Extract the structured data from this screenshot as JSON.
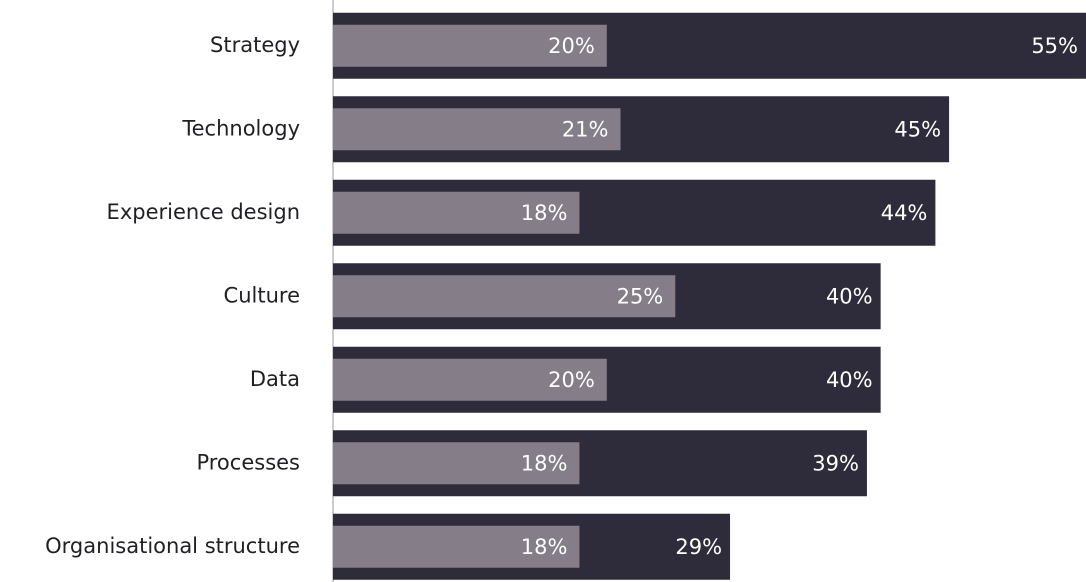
{
  "chart_data": {
    "type": "bar",
    "orientation": "horizontal",
    "overlap": true,
    "categories": [
      "Strategy",
      "Technology",
      "Experience design",
      "Culture",
      "Data",
      "Processes",
      "Organisational structure"
    ],
    "series": [
      {
        "color": "#2e2c3a",
        "values": [
          55,
          45,
          44,
          40,
          40,
          39,
          29
        ],
        "value_labels": [
          "55%",
          "45%",
          "44%",
          "40%",
          "40%",
          "39%",
          "29%"
        ]
      },
      {
        "color": "#857d88",
        "values": [
          20,
          21,
          18,
          25,
          20,
          18,
          18
        ],
        "value_labels": [
          "20%",
          "21%",
          "18%",
          "25%",
          "20%",
          "18%",
          "18%"
        ]
      }
    ]
  }
}
